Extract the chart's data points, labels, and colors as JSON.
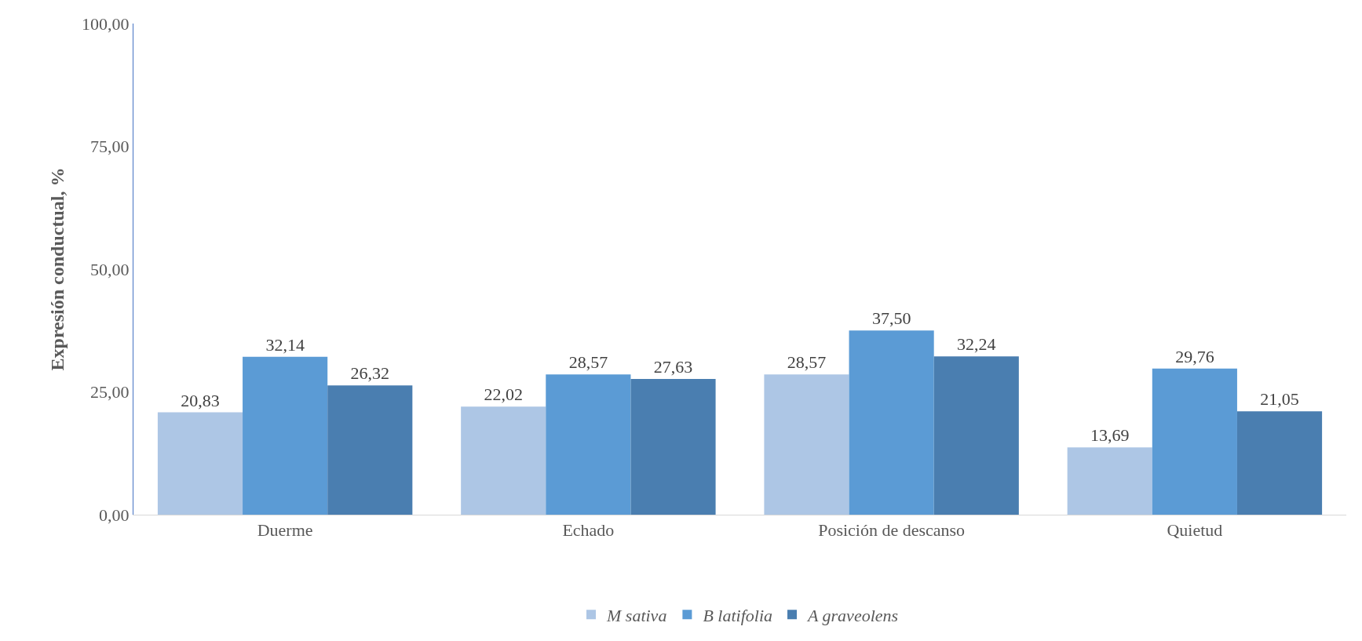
{
  "chart_data": {
    "type": "bar",
    "ylabel": "Expresión conductual, %",
    "categories": [
      "Duerme",
      "Echado",
      "Posición de descanso",
      "Quietud"
    ],
    "series": [
      {
        "name": "M sativa",
        "color": "#adc6e5",
        "values": [
          20.83,
          22.02,
          28.57,
          13.69
        ],
        "value_labels": [
          "20,83",
          "22,02",
          "28,57",
          "13,69"
        ]
      },
      {
        "name": "B latifolia",
        "color": "#5b9bd5",
        "values": [
          32.14,
          28.57,
          37.5,
          29.76
        ],
        "value_labels": [
          "32,14",
          "28,57",
          "37,50",
          "29,76"
        ]
      },
      {
        "name": "A graveolens",
        "color": "#4a7eb0",
        "values": [
          26.32,
          27.63,
          32.24,
          21.05
        ],
        "value_labels": [
          "26,32",
          "27,63",
          "32,24",
          "21,05"
        ]
      }
    ],
    "ylim": [
      0,
      100
    ],
    "yticks": [
      {
        "value": 0,
        "label": "0,00"
      },
      {
        "value": 25,
        "label": "25,00"
      },
      {
        "value": 50,
        "label": "50,00"
      },
      {
        "value": 75,
        "label": "75,00"
      },
      {
        "value": 100,
        "label": "100,00"
      }
    ],
    "grid": false,
    "legend": "bottom"
  }
}
